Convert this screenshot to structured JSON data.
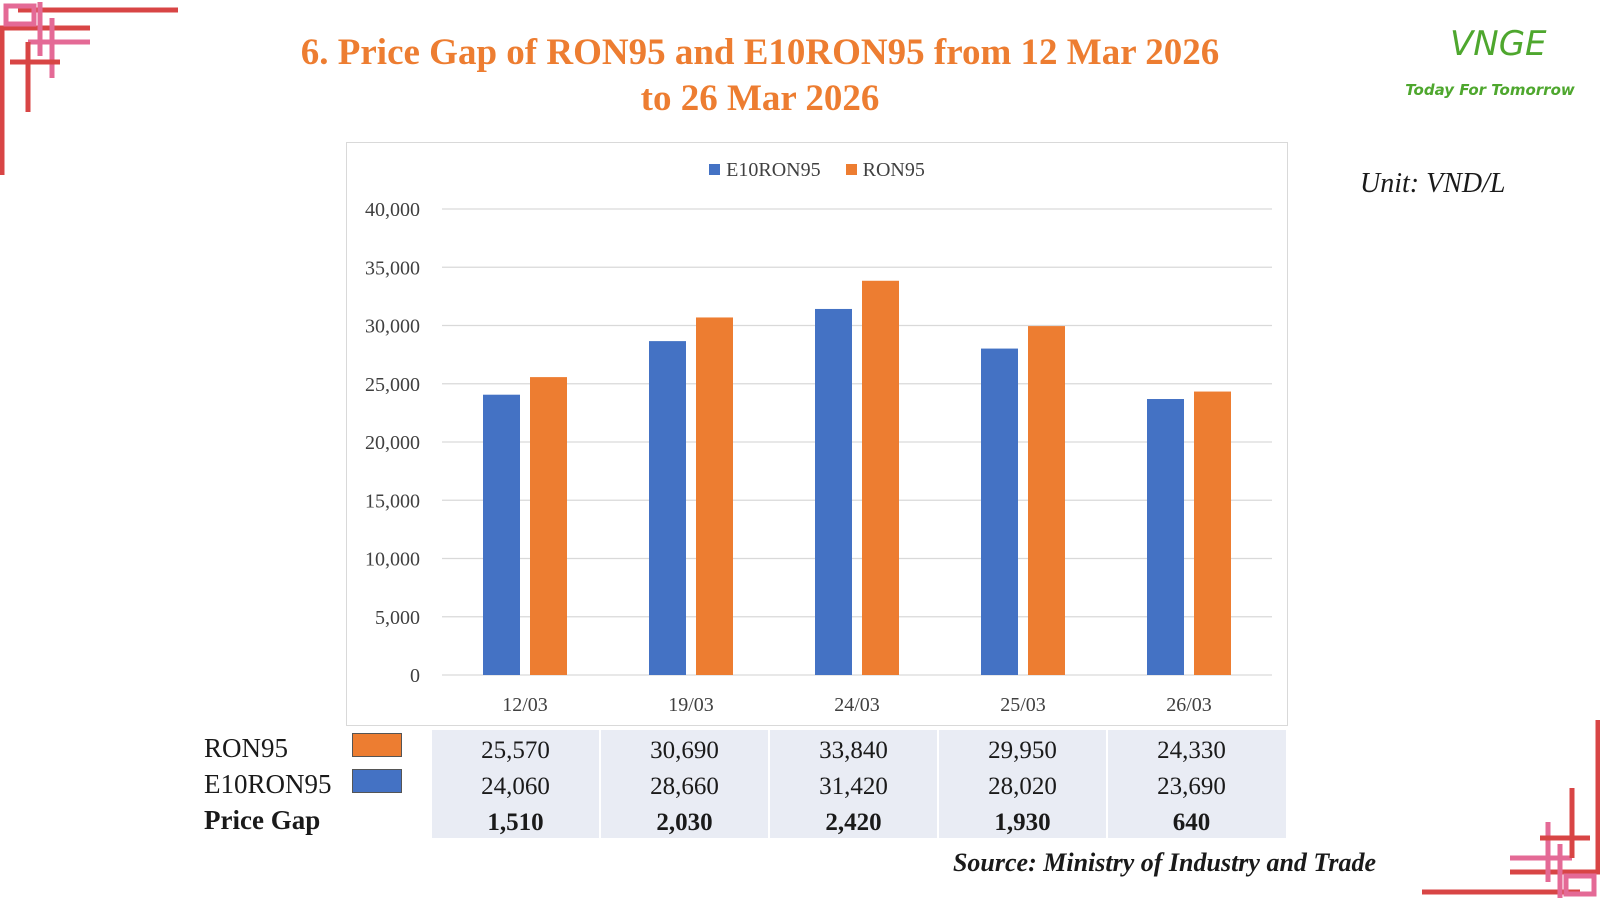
{
  "title": {
    "line1": "6. Price Gap of RON95 and E10RON95 from 12 Mar 2026",
    "line2": "to 26 Mar 2026"
  },
  "logo": {
    "mark": "VNGE",
    "tagline": "Today For Tomorrow",
    "color": "#4ea72e"
  },
  "unit": "Unit: VND/L",
  "source": "Source: Ministry of Industry and Trade",
  "chart_data": {
    "type": "bar",
    "categories": [
      "12/03",
      "19/03",
      "24/03",
      "25/03",
      "26/03"
    ],
    "series": [
      {
        "name": "E10RON95",
        "color": "#4472c4",
        "values": [
          24060,
          28660,
          31420,
          28020,
          23690
        ]
      },
      {
        "name": "RON95",
        "color": "#ed7d31",
        "values": [
          25570,
          30690,
          33840,
          29950,
          24330
        ]
      }
    ],
    "ylim": [
      0,
      40000
    ],
    "yticks": [
      0,
      5000,
      10000,
      15000,
      20000,
      25000,
      30000,
      35000,
      40000
    ],
    "ytick_labels": [
      "0",
      "5,000",
      "10,000",
      "15,000",
      "20,000",
      "25,000",
      "30,000",
      "35,000",
      "40,000"
    ],
    "grid": true,
    "legend_position": "top-center"
  },
  "table": {
    "rows": [
      {
        "label": "RON95",
        "color": "#ed7d31",
        "values": [
          "25,570",
          "30,690",
          "33,840",
          "29,950",
          "24,330"
        ]
      },
      {
        "label": "E10RON95",
        "color": "#4472c4",
        "values": [
          "24,060",
          "28,660",
          "31,420",
          "28,020",
          "23,690"
        ]
      },
      {
        "label": "Price Gap",
        "values": [
          "1,510",
          "2,030",
          "2,420",
          "1,930",
          "640"
        ]
      }
    ]
  },
  "decor_colors": {
    "pink": "#e46a96",
    "red": "#d84545"
  }
}
